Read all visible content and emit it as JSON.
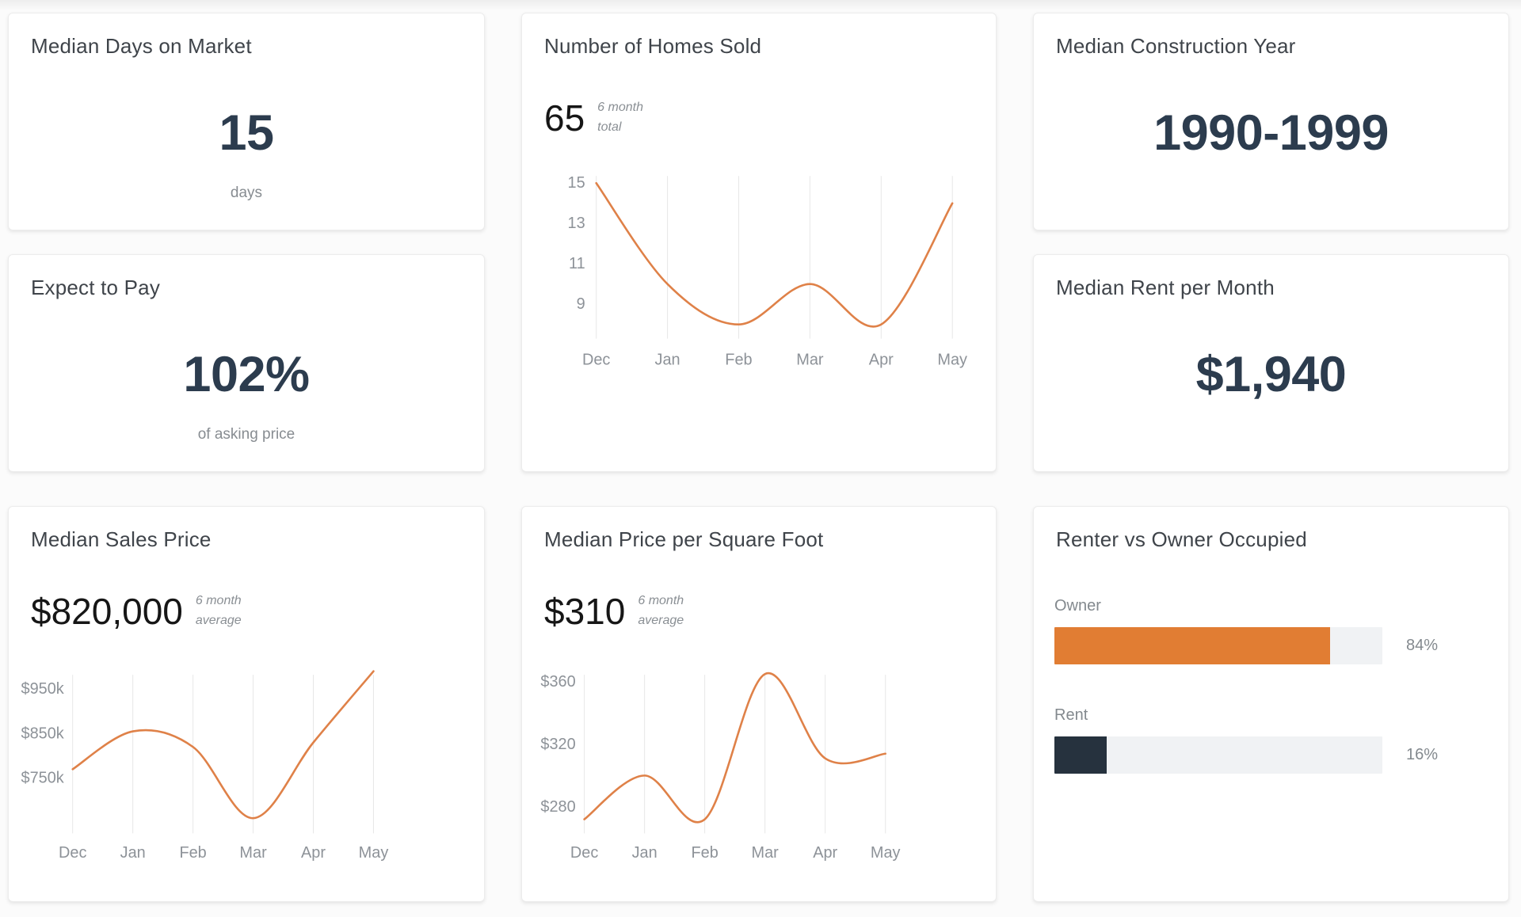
{
  "cards": {
    "days_on_market": {
      "title": "Median Days on Market",
      "value": "15",
      "caption": "days"
    },
    "expect_to_pay": {
      "title": "Expect to Pay",
      "value": "102%",
      "caption": "of asking price"
    },
    "construction_year": {
      "title": "Median Construction Year",
      "value": "1990-1999"
    },
    "rent_per_month": {
      "title": "Median Rent per Month",
      "value": "$1,940"
    },
    "homes_sold": {
      "title": "Number of Homes Sold",
      "stat": "65",
      "note_line1": "6 month",
      "note_line2": "total"
    },
    "sales_price": {
      "title": "Median Sales Price",
      "stat": "$820,000",
      "note_line1": "6 month",
      "note_line2": "average"
    },
    "price_per_sqft": {
      "title": "Median Price per Square Foot",
      "stat": "$310",
      "note_line1": "6 month",
      "note_line2": "average"
    },
    "renter_owner": {
      "title": "Renter vs Owner Occupied"
    }
  },
  "colors": {
    "line_orange": "#DF8148",
    "bar_orange": "#E17D33",
    "bar_navy": "#26323E",
    "bar_track": "#F0F2F4",
    "big_number_navy": "#2C3C4E",
    "gridline": "#E7E7E7",
    "axis_text": "#8D9298"
  },
  "chart_data": [
    {
      "id": "homes_sold",
      "type": "line",
      "title": "Number of Homes Sold",
      "stat_label": "65",
      "stat_note": "6 month total",
      "x": [
        "Dec",
        "Jan",
        "Feb",
        "Mar",
        "Apr",
        "May"
      ],
      "values": [
        15,
        10,
        8,
        10,
        8,
        14
      ],
      "y_ticks": [
        {
          "value": 15,
          "label": "15"
        },
        {
          "value": 13,
          "label": "13"
        },
        {
          "value": 11,
          "label": "11"
        },
        {
          "value": 9,
          "label": "9"
        }
      ],
      "ylim": [
        7.3,
        15.35
      ],
      "grid": "vertical-only",
      "legend": "none",
      "line_color": "#DF8148"
    },
    {
      "id": "sales_price",
      "type": "line",
      "title": "Median Sales Price",
      "stat_label": "$820,000",
      "stat_note": "6 month average",
      "x": [
        "Dec",
        "Jan",
        "Feb",
        "Mar",
        "Apr",
        "May"
      ],
      "values": [
        770000,
        855000,
        820000,
        660000,
        830000,
        990000
      ],
      "y_ticks": [
        {
          "value": 950000,
          "label": "$950k"
        },
        {
          "value": 850000,
          "label": "$850k"
        },
        {
          "value": 750000,
          "label": "$750k"
        }
      ],
      "ylim": [
        626000,
        982000
      ],
      "grid": "vertical-only",
      "legend": "none",
      "line_color": "#DF8148"
    },
    {
      "id": "price_per_sqft",
      "type": "line",
      "title": "Median Price per Square Foot",
      "stat_label": "$310",
      "stat_note": "6 month average",
      "x": [
        "Dec",
        "Jan",
        "Feb",
        "Mar",
        "Apr",
        "May"
      ],
      "values": [
        272,
        300,
        272,
        365,
        311,
        314
      ],
      "y_ticks": [
        {
          "value": 360,
          "label": "$360"
        },
        {
          "value": 320,
          "label": "$320"
        },
        {
          "value": 280,
          "label": "$280"
        }
      ],
      "ylim": [
        263,
        364.5
      ],
      "grid": "vertical-only",
      "legend": "none",
      "line_color": "#DF8148"
    },
    {
      "id": "renter_vs_owner",
      "type": "bar",
      "title": "Renter vs Owner Occupied",
      "categories": [
        "Owner",
        "Rent"
      ],
      "values": [
        84,
        16
      ],
      "value_labels": [
        "84%",
        "16%"
      ],
      "bar_colors": [
        "#E17D33",
        "#26323E"
      ],
      "xlim": [
        0,
        100
      ]
    }
  ]
}
